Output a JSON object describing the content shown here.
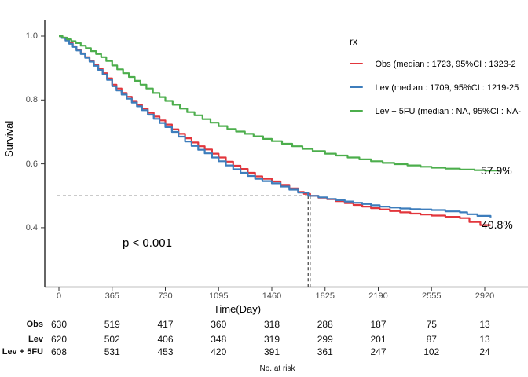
{
  "figure": {
    "y_axis_title": "Survival",
    "x_axis_title": "Time(Day)"
  },
  "legend": {
    "title": "rx",
    "entries": [
      {
        "label": "Obs (median : 1723, 95%CI : 1323-2",
        "color": "#e2363c"
      },
      {
        "label": "Lev (median : 1709, 95%CI : 1219-25",
        "color": "#3d7dbc"
      },
      {
        "label": "Lev + 5FU (median : NA, 95%CI : NA-",
        "color": "#4cae4c"
      }
    ]
  },
  "chart_data": {
    "type": "line",
    "subtype": "kaplan-meier-step",
    "title": "",
    "xlabel": "Time(Day)",
    "ylabel": "Survival",
    "x_ticks": [
      0,
      365,
      730,
      1095,
      1460,
      1825,
      2190,
      2555,
      2920
    ],
    "y_ticks": [
      1.0,
      0.8,
      0.6,
      0.4
    ],
    "xlim": [
      0,
      3215
    ],
    "ylim": [
      0.21,
      1.0
    ],
    "grid": false,
    "legend_position": "top-right-inside",
    "median_reference": {
      "survival": 0.5,
      "times": [
        1709,
        1723
      ]
    },
    "annotations": [
      {
        "text": "57.9%",
        "series": "Lev + 5FU",
        "x_day": 2900,
        "y_survival": 0.579
      },
      {
        "text": "40.8%",
        "series": "Obs",
        "x_day": 2905,
        "y_survival": 0.408
      },
      {
        "text": "p < 0.001",
        "role": "logrank-p",
        "x_day": 440,
        "y_survival": 0.345
      }
    ],
    "series": [
      {
        "name": "Obs",
        "color": "#e2363c",
        "points": [
          [
            0,
            1.0
          ],
          [
            20,
            0.995
          ],
          [
            45,
            0.988
          ],
          [
            70,
            0.978
          ],
          [
            95,
            0.968
          ],
          [
            120,
            0.958
          ],
          [
            150,
            0.946
          ],
          [
            180,
            0.934
          ],
          [
            210,
            0.922
          ],
          [
            240,
            0.91
          ],
          [
            270,
            0.898
          ],
          [
            300,
            0.884
          ],
          [
            330,
            0.868
          ],
          [
            365,
            0.848
          ],
          [
            395,
            0.836
          ],
          [
            430,
            0.822
          ],
          [
            465,
            0.81
          ],
          [
            500,
            0.797
          ],
          [
            535,
            0.785
          ],
          [
            570,
            0.773
          ],
          [
            610,
            0.76
          ],
          [
            650,
            0.748
          ],
          [
            690,
            0.736
          ],
          [
            730,
            0.723
          ],
          [
            775,
            0.708
          ],
          [
            820,
            0.694
          ],
          [
            865,
            0.68
          ],
          [
            910,
            0.667
          ],
          [
            955,
            0.655
          ],
          [
            1000,
            0.645
          ],
          [
            1050,
            0.632
          ],
          [
            1095,
            0.62
          ],
          [
            1145,
            0.607
          ],
          [
            1195,
            0.594
          ],
          [
            1245,
            0.584
          ],
          [
            1295,
            0.572
          ],
          [
            1345,
            0.561
          ],
          [
            1395,
            0.553
          ],
          [
            1460,
            0.545
          ],
          [
            1520,
            0.534
          ],
          [
            1580,
            0.523
          ],
          [
            1640,
            0.512
          ],
          [
            1680,
            0.506
          ],
          [
            1723,
            0.5
          ],
          [
            1780,
            0.494
          ],
          [
            1840,
            0.489
          ],
          [
            1900,
            0.483
          ],
          [
            1960,
            0.477
          ],
          [
            2020,
            0.471
          ],
          [
            2080,
            0.466
          ],
          [
            2140,
            0.461
          ],
          [
            2200,
            0.457
          ],
          [
            2270,
            0.452
          ],
          [
            2340,
            0.448
          ],
          [
            2410,
            0.444
          ],
          [
            2480,
            0.441
          ],
          [
            2555,
            0.438
          ],
          [
            2650,
            0.434
          ],
          [
            2750,
            0.43
          ],
          [
            2815,
            0.418
          ],
          [
            2890,
            0.408
          ],
          [
            2960,
            0.408
          ]
        ]
      },
      {
        "name": "Lev",
        "color": "#3d7dbc",
        "points": [
          [
            0,
            1.0
          ],
          [
            20,
            0.994
          ],
          [
            45,
            0.986
          ],
          [
            70,
            0.976
          ],
          [
            95,
            0.966
          ],
          [
            120,
            0.955
          ],
          [
            150,
            0.944
          ],
          [
            180,
            0.932
          ],
          [
            210,
            0.92
          ],
          [
            240,
            0.907
          ],
          [
            270,
            0.894
          ],
          [
            300,
            0.88
          ],
          [
            330,
            0.863
          ],
          [
            365,
            0.843
          ],
          [
            395,
            0.83
          ],
          [
            430,
            0.817
          ],
          [
            465,
            0.804
          ],
          [
            500,
            0.792
          ],
          [
            535,
            0.78
          ],
          [
            570,
            0.768
          ],
          [
            610,
            0.754
          ],
          [
            650,
            0.741
          ],
          [
            690,
            0.728
          ],
          [
            730,
            0.715
          ],
          [
            775,
            0.7
          ],
          [
            820,
            0.685
          ],
          [
            865,
            0.67
          ],
          [
            910,
            0.656
          ],
          [
            955,
            0.644
          ],
          [
            1000,
            0.633
          ],
          [
            1050,
            0.62
          ],
          [
            1095,
            0.608
          ],
          [
            1145,
            0.595
          ],
          [
            1195,
            0.583
          ],
          [
            1245,
            0.572
          ],
          [
            1295,
            0.562
          ],
          [
            1345,
            0.553
          ],
          [
            1395,
            0.546
          ],
          [
            1460,
            0.539
          ],
          [
            1520,
            0.529
          ],
          [
            1580,
            0.519
          ],
          [
            1640,
            0.51
          ],
          [
            1709,
            0.5
          ],
          [
            1780,
            0.495
          ],
          [
            1840,
            0.49
          ],
          [
            1900,
            0.486
          ],
          [
            1960,
            0.482
          ],
          [
            2020,
            0.478
          ],
          [
            2080,
            0.474
          ],
          [
            2140,
            0.47
          ],
          [
            2200,
            0.466
          ],
          [
            2270,
            0.463
          ],
          [
            2340,
            0.46
          ],
          [
            2410,
            0.458
          ],
          [
            2480,
            0.457
          ],
          [
            2555,
            0.455
          ],
          [
            2650,
            0.451
          ],
          [
            2750,
            0.448
          ],
          [
            2800,
            0.442
          ],
          [
            2870,
            0.437
          ],
          [
            2960,
            0.432
          ]
        ]
      },
      {
        "name": "Lev + 5FU",
        "color": "#4cae4c",
        "points": [
          [
            0,
            1.0
          ],
          [
            25,
            0.995
          ],
          [
            55,
            0.99
          ],
          [
            85,
            0.984
          ],
          [
            115,
            0.978
          ],
          [
            150,
            0.97
          ],
          [
            185,
            0.962
          ],
          [
            220,
            0.953
          ],
          [
            255,
            0.944
          ],
          [
            290,
            0.934
          ],
          [
            325,
            0.922
          ],
          [
            365,
            0.908
          ],
          [
            400,
            0.896
          ],
          [
            440,
            0.884
          ],
          [
            480,
            0.872
          ],
          [
            520,
            0.86
          ],
          [
            560,
            0.848
          ],
          [
            600,
            0.836
          ],
          [
            645,
            0.822
          ],
          [
            690,
            0.809
          ],
          [
            730,
            0.797
          ],
          [
            780,
            0.785
          ],
          [
            830,
            0.773
          ],
          [
            880,
            0.762
          ],
          [
            930,
            0.752
          ],
          [
            985,
            0.74
          ],
          [
            1040,
            0.729
          ],
          [
            1095,
            0.718
          ],
          [
            1155,
            0.709
          ],
          [
            1215,
            0.701
          ],
          [
            1275,
            0.694
          ],
          [
            1335,
            0.686
          ],
          [
            1400,
            0.678
          ],
          [
            1460,
            0.671
          ],
          [
            1530,
            0.663
          ],
          [
            1600,
            0.655
          ],
          [
            1670,
            0.647
          ],
          [
            1740,
            0.64
          ],
          [
            1825,
            0.632
          ],
          [
            1900,
            0.626
          ],
          [
            1980,
            0.62
          ],
          [
            2060,
            0.614
          ],
          [
            2140,
            0.608
          ],
          [
            2220,
            0.603
          ],
          [
            2300,
            0.599
          ],
          [
            2390,
            0.595
          ],
          [
            2480,
            0.591
          ],
          [
            2555,
            0.588
          ],
          [
            2650,
            0.585
          ],
          [
            2750,
            0.582
          ],
          [
            2850,
            0.58
          ],
          [
            2920,
            0.579
          ],
          [
            3020,
            0.579
          ]
        ]
      }
    ]
  },
  "risk_table": {
    "caption": "No. at risk",
    "time_points": [
      0,
      365,
      730,
      1095,
      1460,
      1825,
      2190,
      2555,
      2920
    ],
    "rows": [
      {
        "label": "Obs",
        "counts": [
          630,
          519,
          417,
          360,
          318,
          288,
          187,
          75,
          13
        ]
      },
      {
        "label": "Lev",
        "counts": [
          620,
          502,
          406,
          348,
          319,
          299,
          201,
          87,
          13
        ]
      },
      {
        "label": "Lev + 5FU",
        "counts": [
          608,
          531,
          453,
          420,
          391,
          361,
          247,
          102,
          24
        ]
      }
    ]
  }
}
